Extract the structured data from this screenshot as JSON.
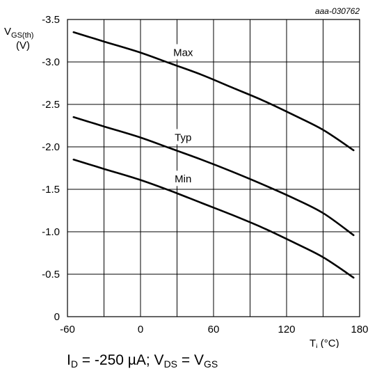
{
  "chart_data": {
    "type": "line",
    "figure_id": "aaa-030762",
    "ylabel": {
      "main": "V",
      "sub": "GS(th)",
      "unit": "(V)"
    },
    "xlabel": {
      "main": "T",
      "sub": "j",
      "unit": "(°C)"
    },
    "xlim": [
      -60,
      180
    ],
    "ylim": [
      0,
      -3.5
    ],
    "x_ticks": [
      -60,
      0,
      60,
      120,
      180
    ],
    "x_tick_labels": [
      "-60",
      "0",
      "60",
      "120",
      "180"
    ],
    "y_ticks": [
      0,
      -0.5,
      -1.0,
      -1.5,
      -2.0,
      -2.5,
      -3.0,
      -3.5
    ],
    "y_tick_labels": [
      "0",
      "-0.5",
      "-1.0",
      "-1.5",
      "-2.0",
      "-2.5",
      "-3.0",
      "-3.5"
    ],
    "grid": true,
    "series": [
      {
        "name": "Max",
        "label_x": 35,
        "label_y": -3.07,
        "x": [
          -55,
          -30,
          0,
          25,
          50,
          75,
          100,
          125,
          150,
          175
        ],
        "y": [
          -3.35,
          -3.24,
          -3.11,
          -2.98,
          -2.85,
          -2.7,
          -2.55,
          -2.38,
          -2.2,
          -1.96
        ]
      },
      {
        "name": "Typ",
        "label_x": 35,
        "label_y": -2.07,
        "x": [
          -55,
          -30,
          0,
          25,
          50,
          75,
          100,
          125,
          150,
          175
        ],
        "y": [
          -2.35,
          -2.24,
          -2.11,
          -1.98,
          -1.85,
          -1.71,
          -1.56,
          -1.4,
          -1.22,
          -0.96
        ]
      },
      {
        "name": "Min",
        "label_x": 35,
        "label_y": -1.58,
        "x": [
          -55,
          -30,
          0,
          25,
          50,
          75,
          100,
          125,
          150,
          175
        ],
        "y": [
          -1.85,
          -1.74,
          -1.61,
          -1.48,
          -1.34,
          -1.2,
          -1.05,
          -0.88,
          -0.7,
          -0.46
        ]
      }
    ]
  },
  "caption": {
    "i_main": "I",
    "i_sub": "D",
    "eq1": " = -250 µA; ",
    "v_main": "V",
    "v_sub": "DS",
    "eq2": " = ",
    "v2_main": "V",
    "v2_sub": "GS"
  }
}
